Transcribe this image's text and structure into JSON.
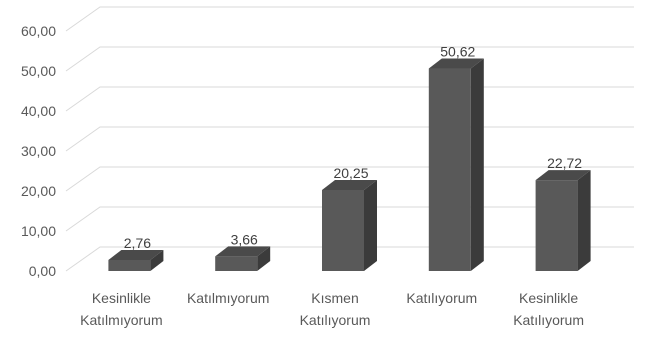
{
  "chart_data": {
    "type": "bar",
    "style": "3d-column",
    "title": "",
    "xlabel": "",
    "ylabel": "",
    "categories": [
      [
        "Kesinlikle",
        "Katılmıyorum"
      ],
      [
        "Katılmıyorum"
      ],
      [
        "Kısmen",
        "Katılıyorum"
      ],
      [
        "Katılıyorum"
      ],
      [
        "Kesinlikle",
        "Katılıyorum"
      ]
    ],
    "values": [
      2.76,
      3.66,
      20.25,
      50.62,
      22.72
    ],
    "value_labels": [
      "2,76",
      "3,66",
      "20,25",
      "50,62",
      "22,72"
    ],
    "yticks": [
      "0,00",
      "10,00",
      "20,00",
      "30,00",
      "40,00",
      "50,00",
      "60,00"
    ],
    "ylim": [
      0,
      60
    ],
    "grid": true,
    "legend": "none",
    "colors": {
      "bar_front": "#595959",
      "bar_side": "#3b3b3b",
      "bar_top": "#4a4a4a",
      "grid": "#d9d9d9",
      "text": "#595959"
    }
  }
}
